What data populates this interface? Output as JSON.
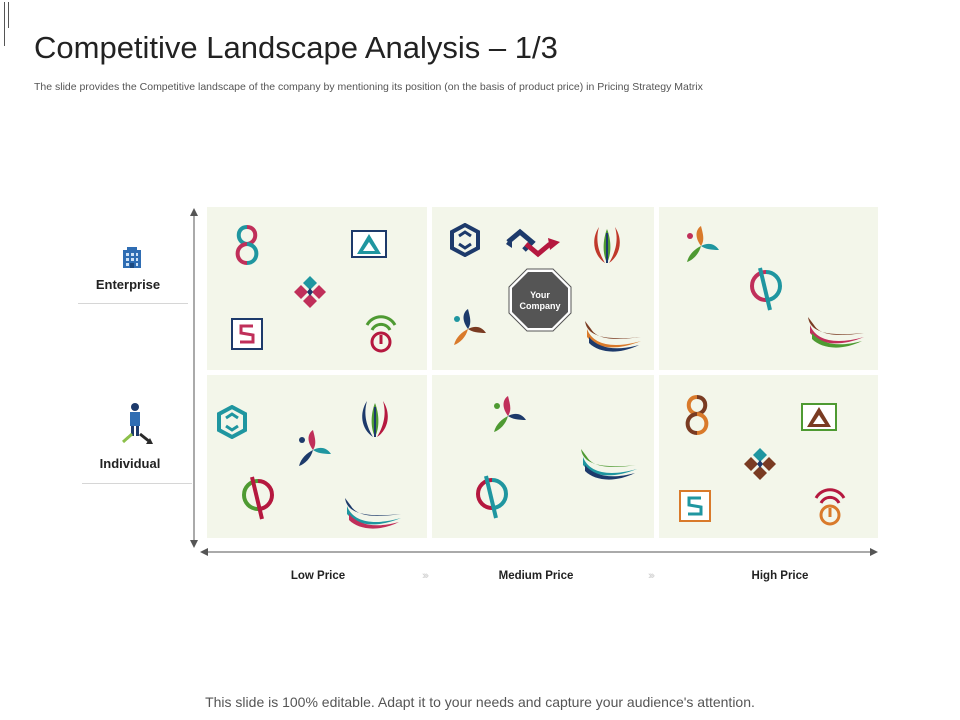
{
  "slide": {
    "title": "Competitive Landscape Analysis – 1/3",
    "subtitle": "The slide provides the Competitive landscape of the company by mentioning its position (on the basis of product price) in Pricing Strategy Matrix",
    "footer": "This slide is 100% editable. Adapt it to your needs and capture your audience's attention."
  },
  "matrix": {
    "rows": [
      {
        "label": "Enterprise",
        "icon": "building-icon"
      },
      {
        "label": "Individual",
        "icon": "person-icon"
      }
    ],
    "columns": [
      "Low Price",
      "Medium Price",
      "High Price"
    ],
    "separator": "›››",
    "your_company": "Your Company",
    "your_company_lines": [
      "Your",
      "Company"
    ]
  },
  "colors": {
    "cell_bg": "#f3f6ea",
    "teal": "#1f96a0",
    "crimson": "#b5183f",
    "navy": "#1d3a6b",
    "green": "#4e9a32",
    "orange": "#d97a2b",
    "brown": "#7a3b22",
    "badge": "#555555"
  }
}
